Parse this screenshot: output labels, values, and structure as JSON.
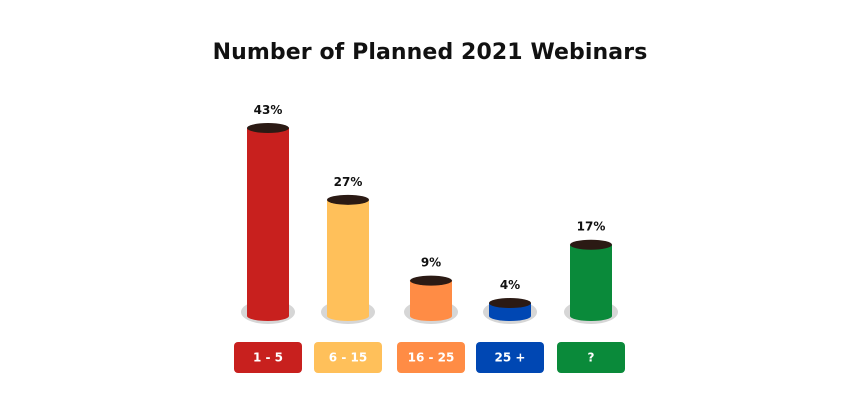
{
  "chart_data": {
    "type": "bar",
    "title": "Number of Planned 2021 Webinars",
    "categories": [
      "1 - 5",
      "6 - 15",
      "16 - 25",
      "25 +",
      "?"
    ],
    "values": [
      43,
      27,
      9,
      4,
      17
    ],
    "value_labels": [
      "43%",
      "27%",
      "9%",
      "4%",
      "17%"
    ],
    "unit": "%",
    "colors": [
      "#c8201e",
      "#ffc05a",
      "#ff8c45",
      "#0047b3",
      "#0a8a3a"
    ],
    "cap_color": "#2b1a14",
    "shadow_color": "#d6d6d6",
    "xlabel": "",
    "ylabel": "",
    "ylim": [
      0,
      43
    ],
    "grid": false,
    "legend": "none"
  }
}
